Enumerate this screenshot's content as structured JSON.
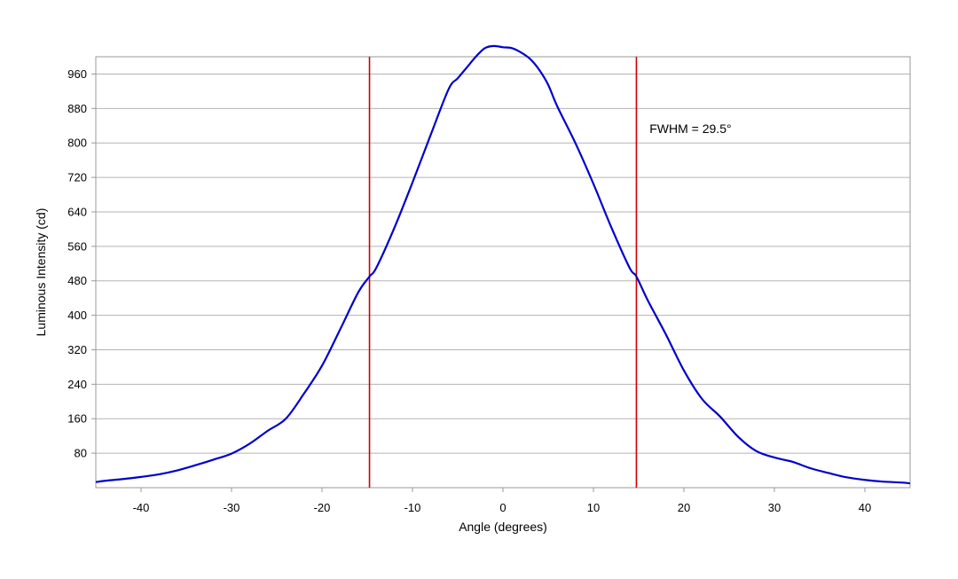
{
  "chart_data": {
    "type": "line",
    "title": "",
    "xlabel": "Angle (degrees)",
    "ylabel": "Luminous Intensity (cd)",
    "xlim": [
      -45,
      45
    ],
    "ylim": [
      0,
      1000
    ],
    "x_ticks": [
      -40,
      -30,
      -20,
      -10,
      0,
      10,
      20,
      30,
      40
    ],
    "x_tick_labels": [
      "-40",
      "-30",
      "-20",
      "-10",
      "0",
      "10",
      "20",
      "30",
      "40"
    ],
    "y_ticks": [
      80,
      160,
      240,
      320,
      400,
      480,
      560,
      640,
      720,
      800,
      880,
      960
    ],
    "y_tick_labels": [
      "80",
      "160",
      "240",
      "320",
      "400",
      "480",
      "560",
      "640",
      "720",
      "800",
      "880",
      "960"
    ],
    "grid": "horizontal",
    "series": [
      {
        "color": "#0000cc",
        "x": [
          -45,
          -44,
          -42,
          -40,
          -38,
          -36,
          -34,
          -32,
          -30,
          -28,
          -26,
          -24,
          -22,
          -20,
          -18,
          -16,
          -14.75,
          -14,
          -12,
          -10,
          -8,
          -6,
          -5,
          -4,
          -3,
          -2,
          -1,
          0,
          1,
          2,
          3,
          4,
          5,
          6,
          8,
          10,
          12,
          14,
          14.75,
          16,
          18,
          20,
          22,
          24,
          26,
          28,
          30,
          32,
          34,
          36,
          38,
          40,
          42,
          44,
          45
        ],
        "y": [
          13,
          16,
          20,
          25,
          31,
          40,
          52,
          65,
          79,
          102,
          132,
          160,
          218,
          283,
          367,
          453,
          490,
          510,
          603,
          708,
          818,
          925,
          950,
          975,
          1000,
          1020,
          1025,
          1022,
          1020,
          1010,
          995,
          970,
          935,
          885,
          800,
          705,
          603,
          510,
          490,
          435,
          356,
          272,
          206,
          165,
          118,
          85,
          70,
          60,
          45,
          34,
          24,
          18,
          14,
          12,
          10
        ]
      }
    ],
    "vertical_lines": [
      {
        "x": -14.75,
        "color": "#cc0000"
      },
      {
        "x": 14.75,
        "color": "#cc0000"
      }
    ],
    "annotations": [
      {
        "text": "FWHM = 29.5°",
        "x": 16.2,
        "y": 833
      }
    ]
  }
}
